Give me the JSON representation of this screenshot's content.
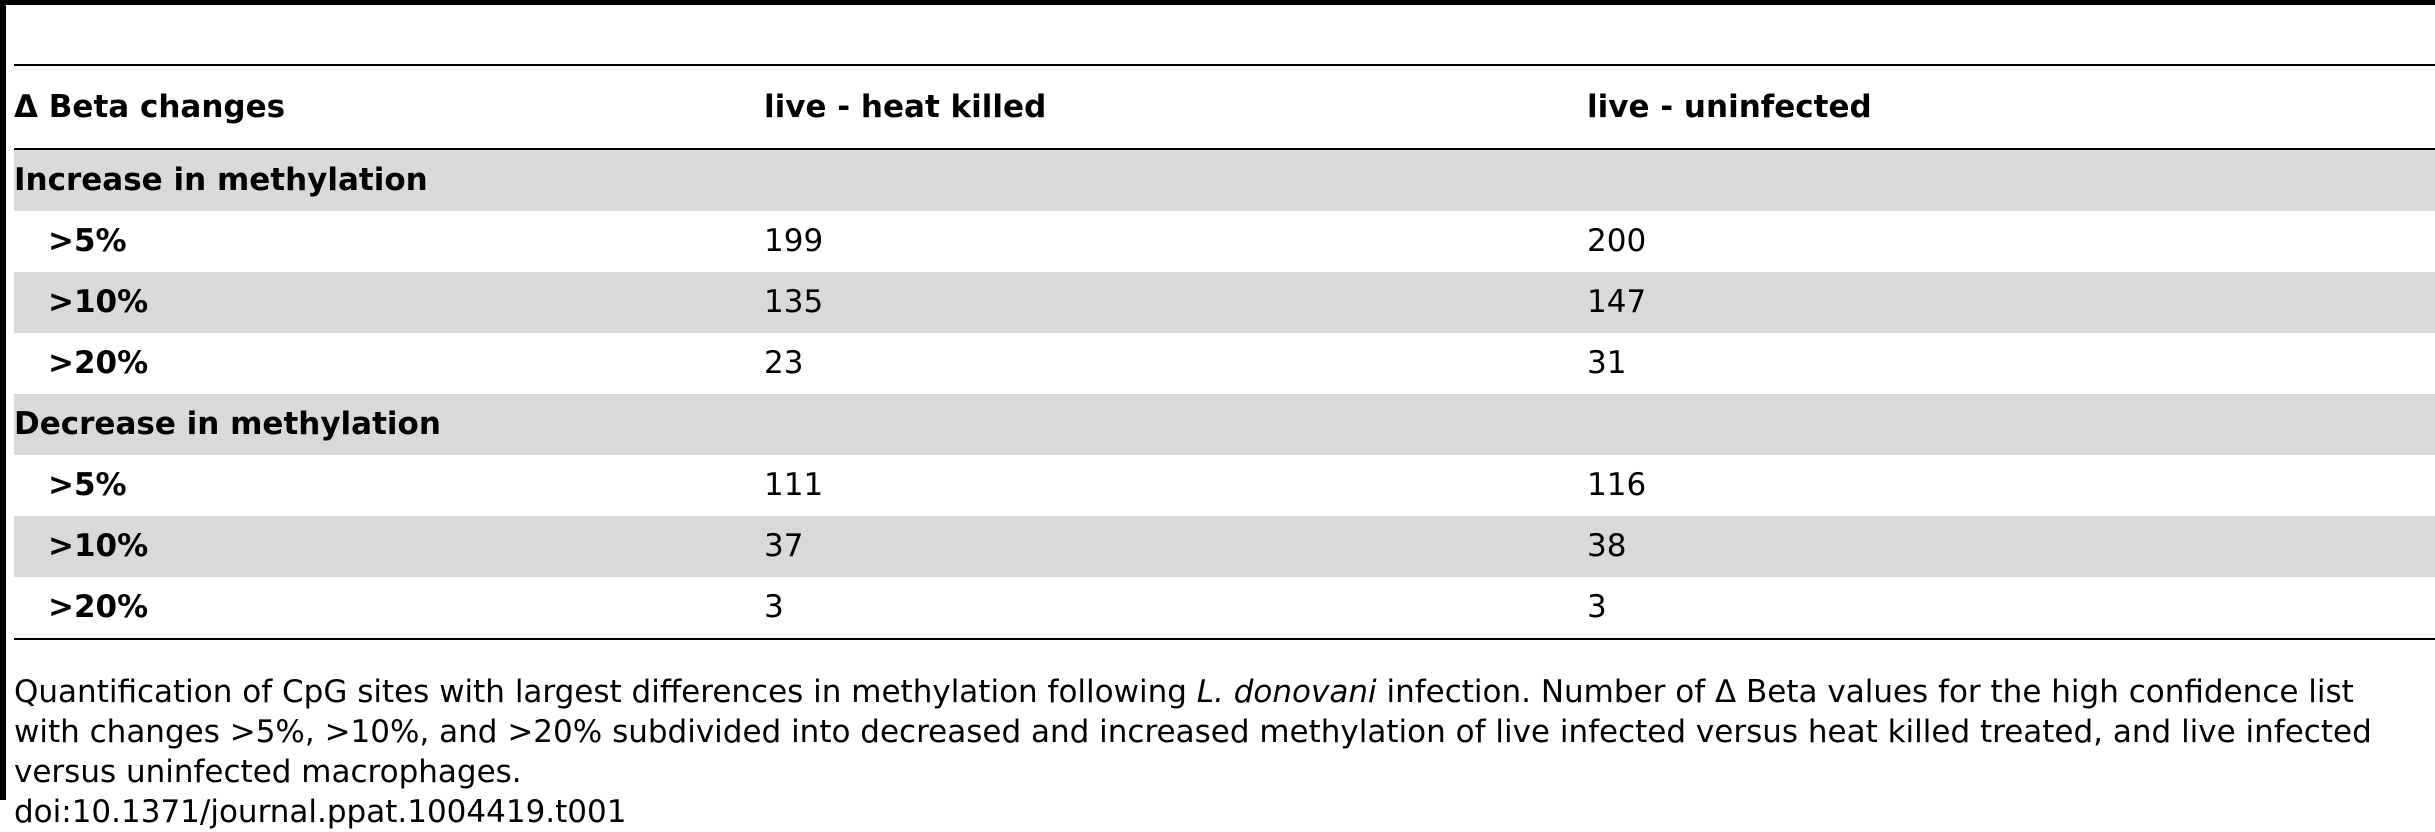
{
  "table": {
    "headers": [
      "Δ Beta changes",
      "live - heat killed",
      "live - uninfected"
    ],
    "sections": [
      {
        "label": "Increase in methylation",
        "rows": [
          {
            "threshold": ">5%",
            "heat_killed": "199",
            "uninfected": "200"
          },
          {
            "threshold": ">10%",
            "heat_killed": "135",
            "uninfected": "147"
          },
          {
            "threshold": ">20%",
            "heat_killed": "23",
            "uninfected": "31"
          }
        ]
      },
      {
        "label": "Decrease in methylation",
        "rows": [
          {
            "threshold": ">5%",
            "heat_killed": "111",
            "uninfected": "116"
          },
          {
            "threshold": ">10%",
            "heat_killed": "37",
            "uninfected": "38"
          },
          {
            "threshold": ">20%",
            "heat_killed": "3",
            "uninfected": "3"
          }
        ]
      }
    ]
  },
  "caption": {
    "part1": "Quantification of CpG sites with largest differences in methylation following ",
    "species": "L. donovani",
    "part2": " infection. Number of Δ Beta values for the high confidence list with changes >5%, >10%, and >20% subdivided into decreased and increased methylation of live infected versus heat killed treated, and live infected versus uninfected macrophages.",
    "doi": "doi:10.1371/journal.ppat.1004419.t001"
  }
}
